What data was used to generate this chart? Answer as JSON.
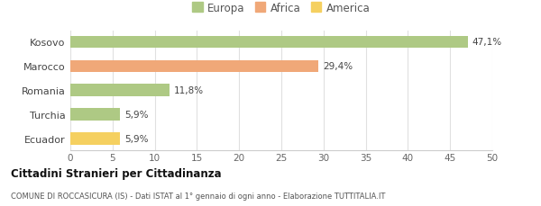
{
  "categories": [
    "Kosovo",
    "Marocco",
    "Romania",
    "Turchia",
    "Ecuador"
  ],
  "values": [
    47.1,
    29.4,
    11.8,
    5.9,
    5.9
  ],
  "labels": [
    "47,1%",
    "29,4%",
    "11,8%",
    "5,9%",
    "5,9%"
  ],
  "bar_colors": [
    "#aec984",
    "#f0a878",
    "#aec984",
    "#aec984",
    "#f5d060"
  ],
  "legend_items": [
    {
      "label": "Europa",
      "color": "#aec984"
    },
    {
      "label": "Africa",
      "color": "#f0a878"
    },
    {
      "label": "America",
      "color": "#f5d060"
    }
  ],
  "xlim": [
    0,
    50
  ],
  "xticks": [
    0,
    5,
    10,
    15,
    20,
    25,
    30,
    35,
    40,
    45,
    50
  ],
  "title_bold": "Cittadini Stranieri per Cittadinanza",
  "subtitle": "COMUNE DI ROCCASICURA (IS) - Dati ISTAT al 1° gennaio di ogni anno - Elaborazione TUTTITALIA.IT",
  "background_color": "#ffffff",
  "grid_color": "#e0e0e0"
}
